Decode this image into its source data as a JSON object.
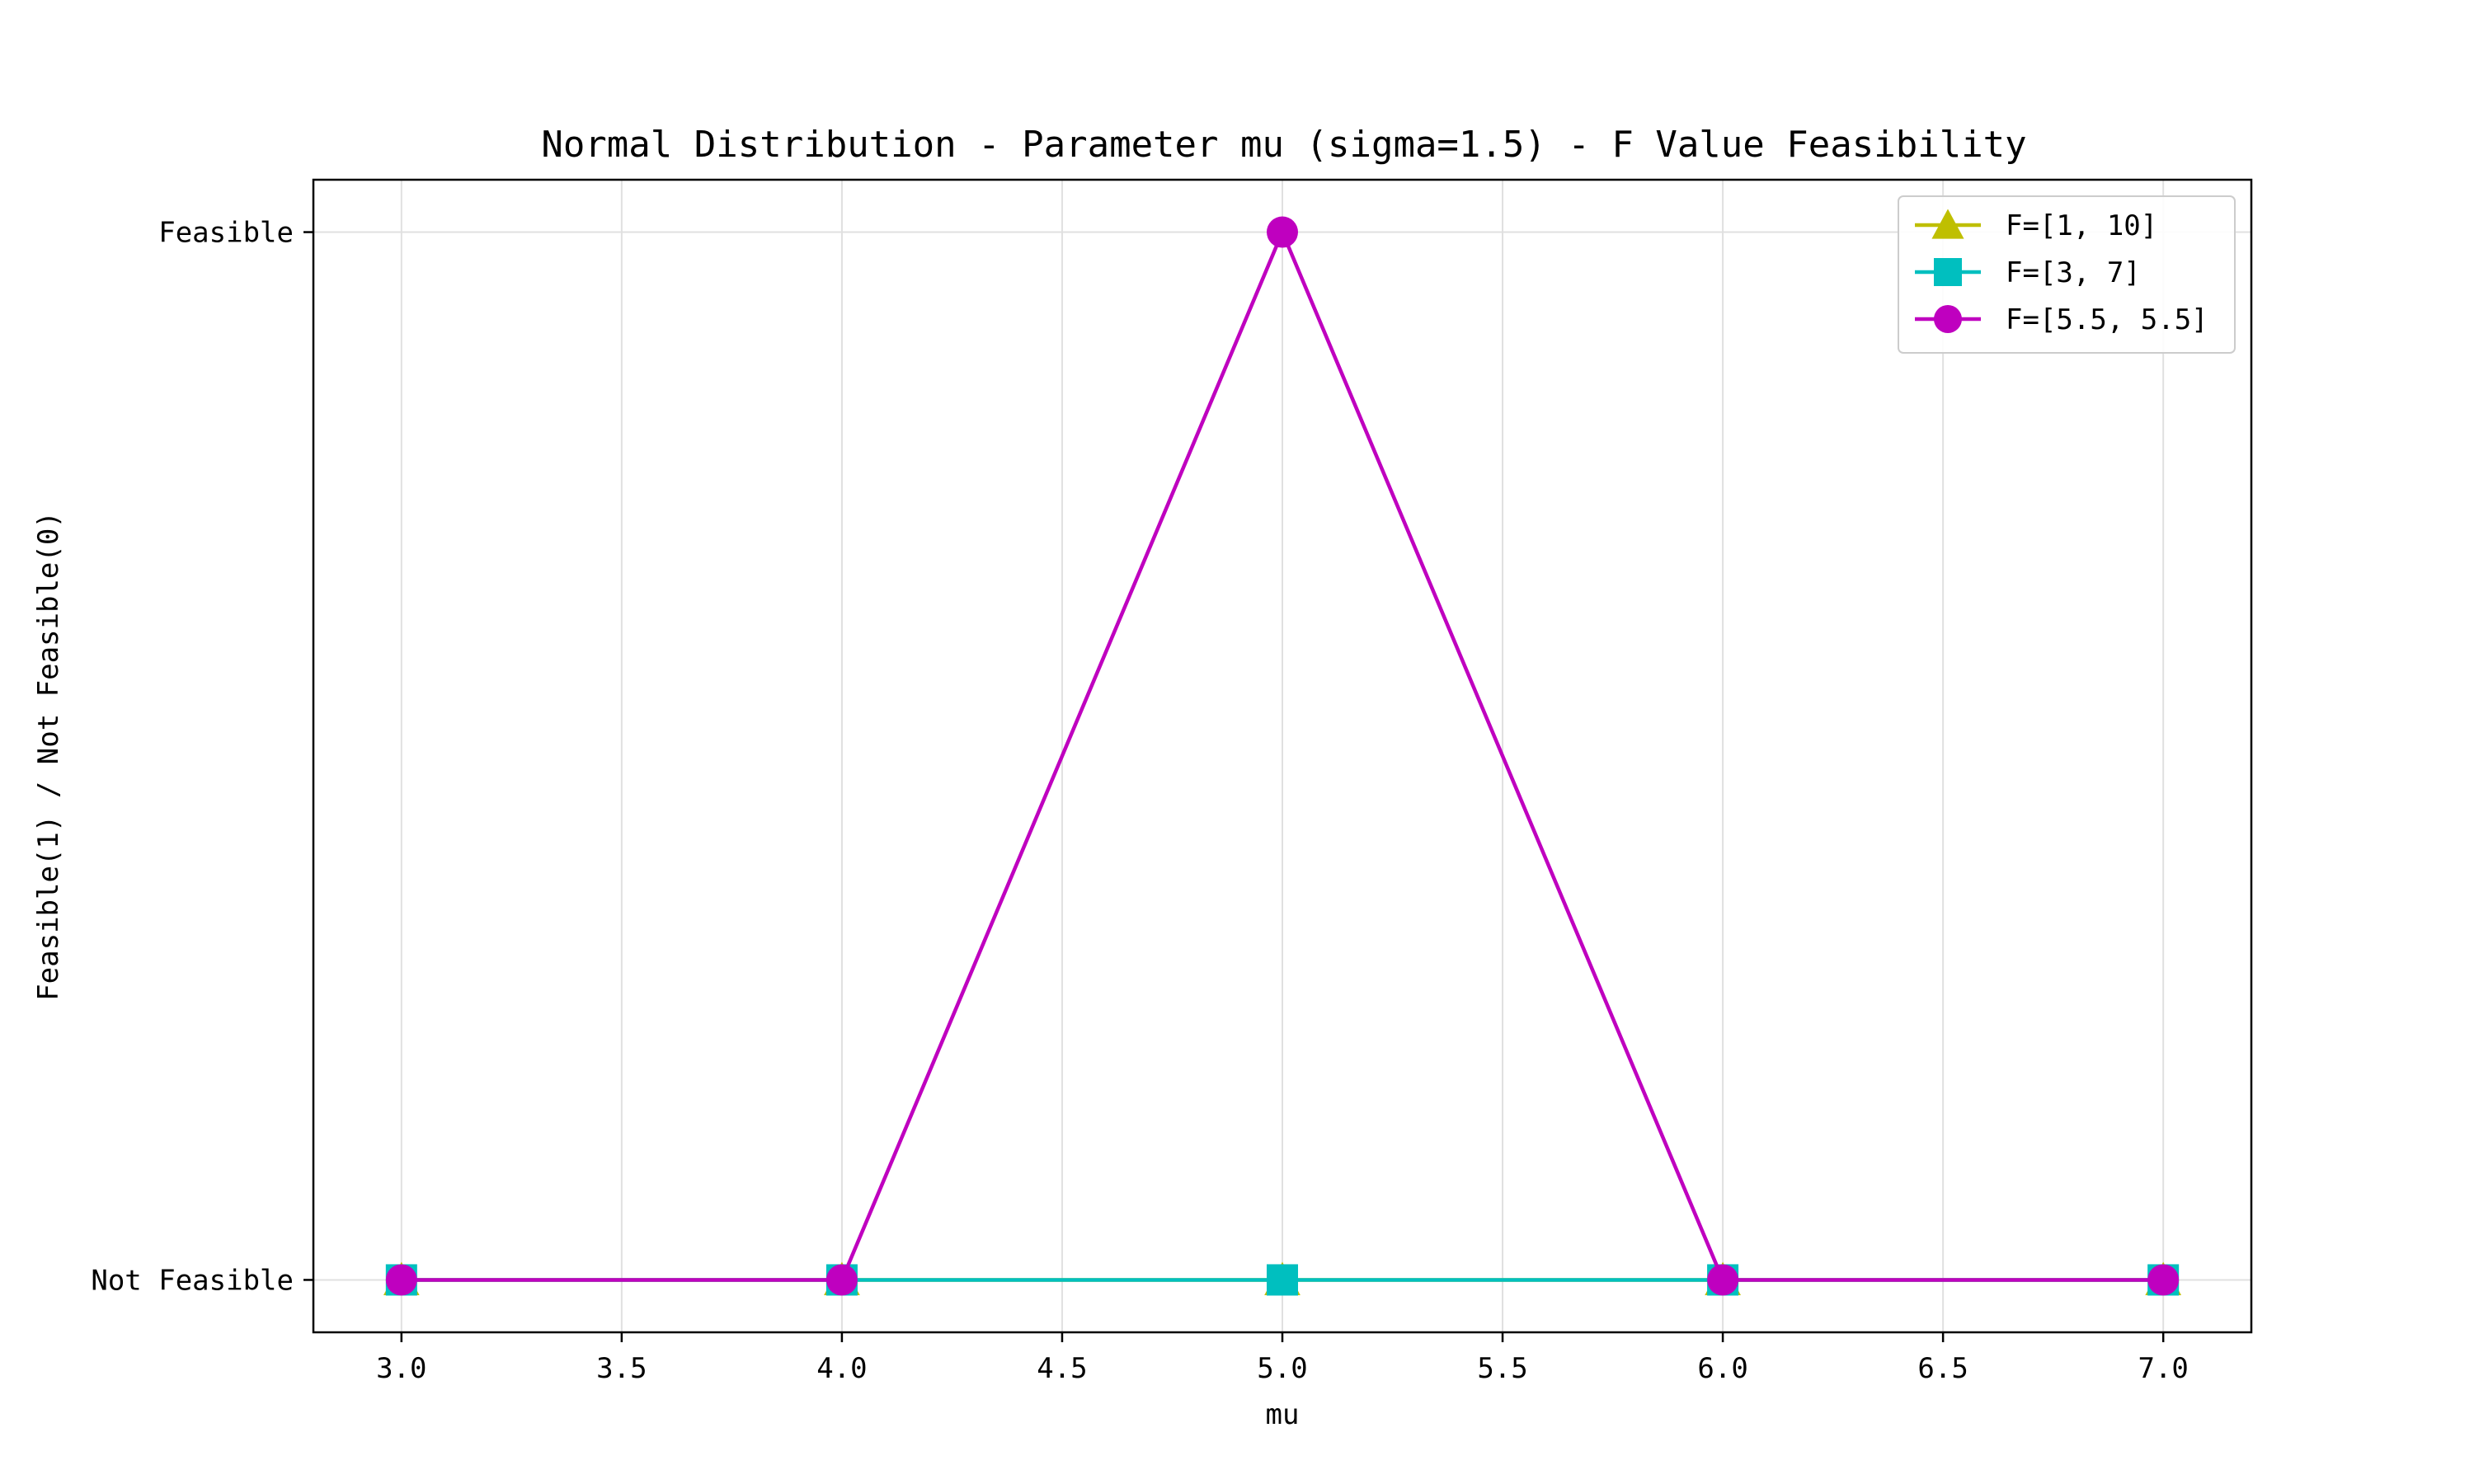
{
  "chart_data": {
    "type": "line",
    "title": "Normal Distribution - Parameter mu (sigma=1.5) - F Value Feasibility",
    "xlabel": "mu",
    "ylabel": "Feasible(1) / Not Feasible(0)",
    "xlim": [
      2.8,
      7.2
    ],
    "ylim": [
      -0.05,
      1.05
    ],
    "x_ticks": [
      3.0,
      3.5,
      4.0,
      4.5,
      5.0,
      5.5,
      6.0,
      6.5,
      7.0
    ],
    "x_tick_labels": [
      "3.0",
      "3.5",
      "4.0",
      "4.5",
      "5.0",
      "5.5",
      "6.0",
      "6.5",
      "7.0"
    ],
    "y_ticks": [
      0,
      1
    ],
    "y_tick_labels": [
      "Not Feasible",
      "Feasible"
    ],
    "grid": true,
    "legend_position": "top-right",
    "x": [
      3.0,
      4.0,
      5.0,
      6.0,
      7.0
    ],
    "series": [
      {
        "name": "F=[1, 10]",
        "values": [
          0,
          0,
          0,
          0,
          0
        ],
        "color": "#bfbf00",
        "marker": "triangle"
      },
      {
        "name": "F=[3, 7]",
        "values": [
          0,
          0,
          0,
          0,
          0
        ],
        "color": "#00bfbf",
        "marker": "square"
      },
      {
        "name": "F=[5.5, 5.5]",
        "values": [
          0,
          0,
          1,
          0,
          0
        ],
        "color": "#bf00bf",
        "marker": "circle"
      }
    ]
  }
}
